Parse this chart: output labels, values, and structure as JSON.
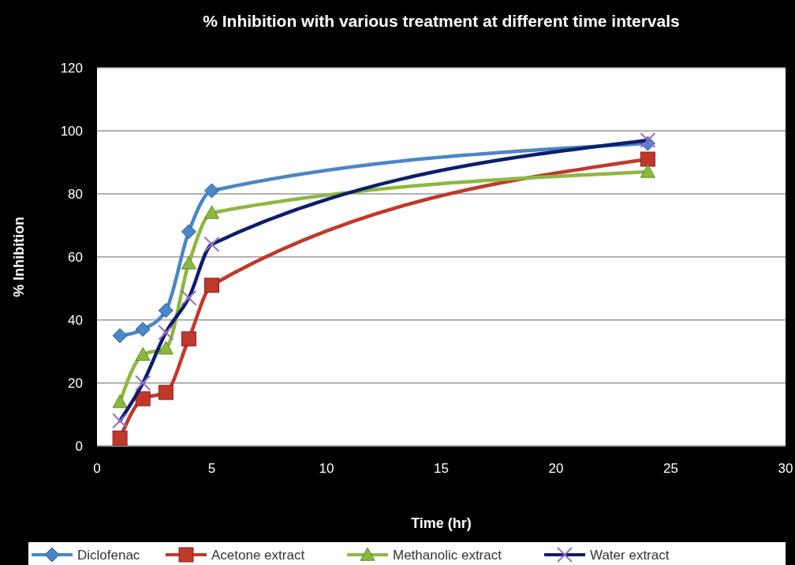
{
  "chart_data": {
    "type": "line",
    "title": "% Inhibition with various treatment at different time intervals",
    "xlabel": "Time (hr)",
    "ylabel": "% Inhibition",
    "x": [
      1,
      2,
      3,
      4,
      5,
      24
    ],
    "xlim": [
      0,
      30
    ],
    "xticks": [
      0,
      5,
      10,
      15,
      20,
      25,
      30
    ],
    "ylim": [
      0,
      120
    ],
    "yticks": [
      0,
      20,
      40,
      60,
      80,
      100,
      120
    ],
    "grid": "y",
    "legend": "bottom",
    "series": [
      {
        "name": "Diclofenac",
        "color": "#4a86c8",
        "marker": "diamond",
        "values": [
          35,
          37,
          43,
          68,
          81,
          96
        ]
      },
      {
        "name": "Acetone extract",
        "color": "#c0392b",
        "marker": "square",
        "values": [
          2.5,
          15,
          17,
          34,
          51,
          91
        ]
      },
      {
        "name": "Methanolic extract",
        "color": "#8db840",
        "marker": "triangle",
        "values": [
          14,
          29,
          31,
          58,
          74,
          87
        ]
      },
      {
        "name": "Water extract",
        "color": "#0b1f6b",
        "marker": "cross",
        "values": [
          8,
          20,
          36,
          47,
          64,
          97
        ]
      }
    ]
  }
}
